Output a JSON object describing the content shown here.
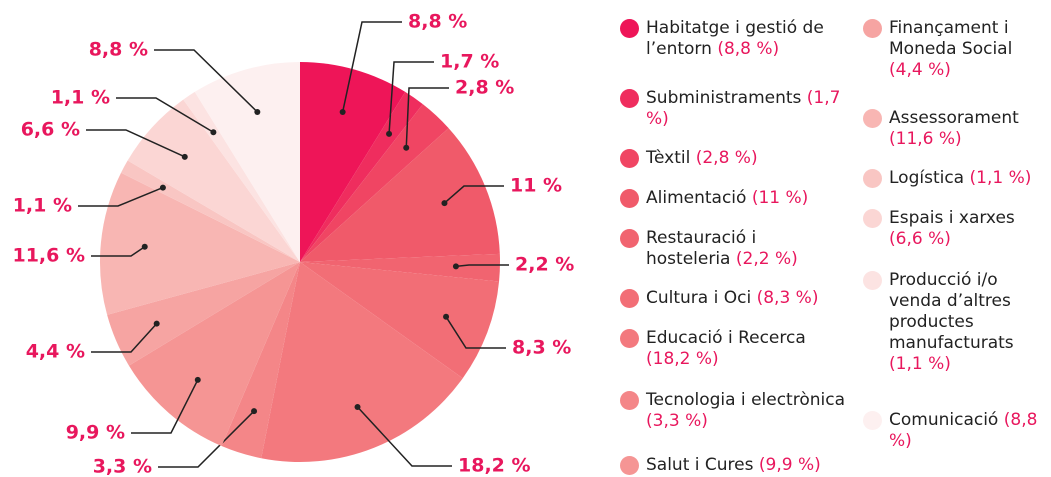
{
  "chart_data": {
    "type": "pie",
    "categories": [
      "Habitatge i gestió de l’entorn",
      "Subministraments",
      "Tèxtil",
      "Alimentació",
      "Restauració i hosteleria",
      "Cultura i Oci",
      "Educació i Recerca",
      "Tecnologia i electrònica",
      "Salut i Cures",
      "Finançament i Moneda Social",
      "Assessorament",
      "Logística",
      "Espais i xarxes",
      "Producció i/o venda d’altres productes manufacturats",
      "Comunicació"
    ],
    "values": [
      8.8,
      1.7,
      2.8,
      11,
      2.2,
      8.3,
      18.2,
      3.3,
      9.9,
      4.4,
      11.6,
      1.1,
      6.6,
      1.1,
      8.8
    ],
    "value_labels": [
      "8,8 %",
      "1,7 %",
      "2,8 %",
      "11 %",
      "2,2 %",
      "8,3 %",
      "18,2 %",
      "3,3 %",
      "9,9 %",
      "4,4 %",
      "11,6 %",
      "1,1 %",
      "6,6 %",
      "1,1 %",
      "8,8 %"
    ],
    "legend_labels": [
      "(8,8 %)",
      "(1,7 %)",
      "(2,8 %)",
      "(11 %)",
      "(2,2 %)",
      "(8,3 %)",
      "(18,2 %)",
      "(3,3 %)",
      "(9,9 %)",
      "(4,4 %)",
      "(11,6 %)",
      "(1,1 %)",
      "(6,6 %)",
      "(1,1 %)",
      "(8,8 %)"
    ],
    "colors": [
      "#ee1558",
      "#ef2d5e",
      "#f04563",
      "#f05a6a",
      "#f16470",
      "#f26e76",
      "#f3797e",
      "#f48688",
      "#f59594",
      "#f6a4a2",
      "#f8b6b3",
      "#f9c6c3",
      "#fbd6d4",
      "#fce3e2",
      "#fdf0f0"
    ]
  }
}
